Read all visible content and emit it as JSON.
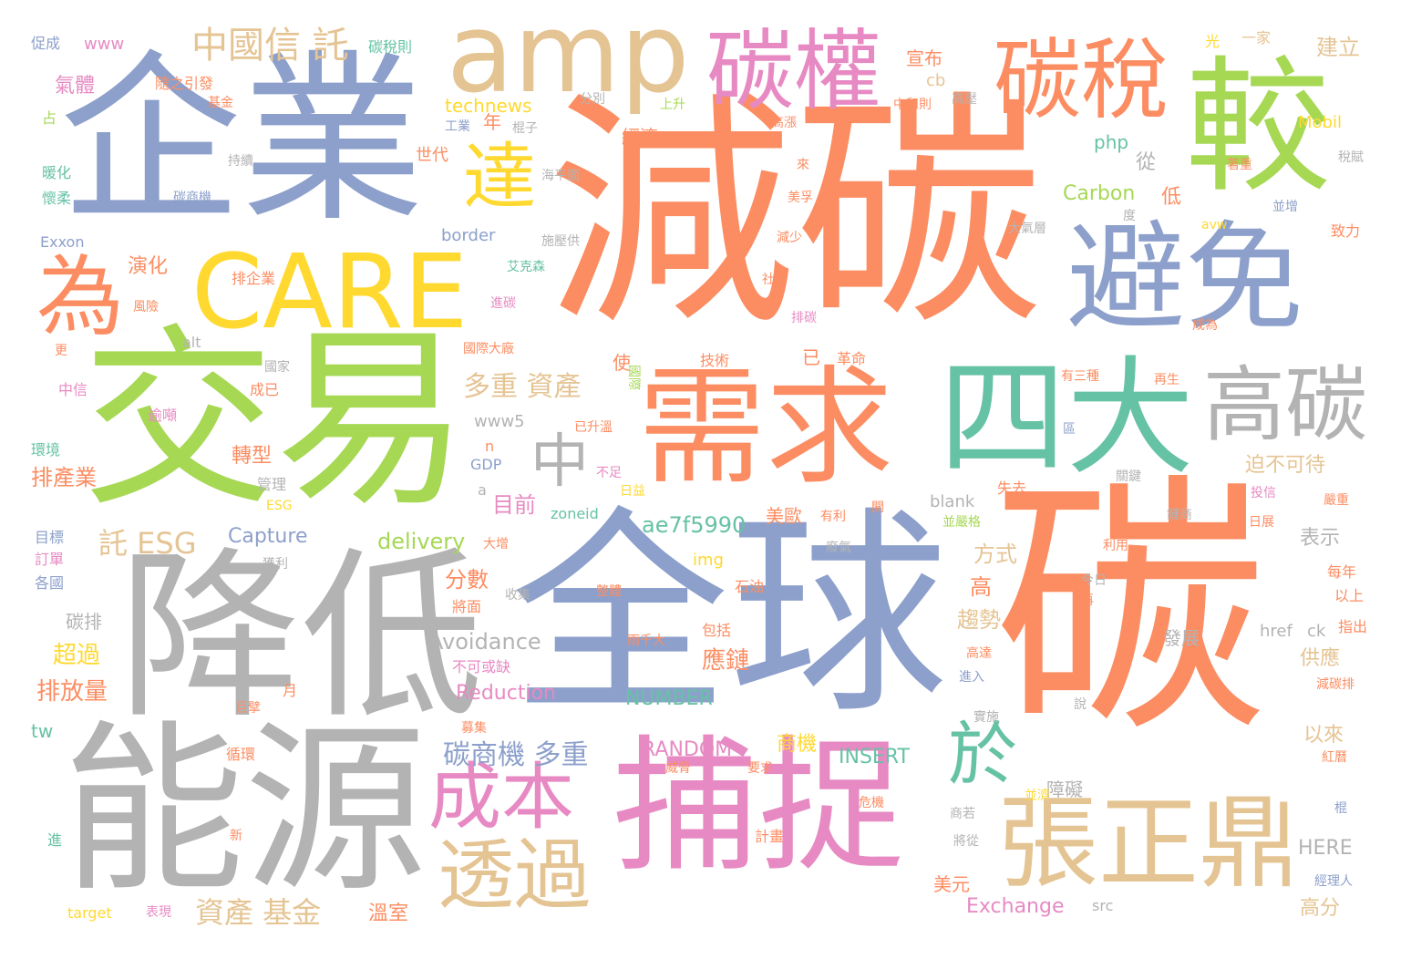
{
  "words": [
    "碳",
    "減碳",
    "全球",
    "交易",
    "降低",
    "能源",
    "企業",
    "捕捉",
    "較",
    "需求",
    "四大",
    "避免",
    "CARE",
    "amp",
    "張正鼎",
    "高碳",
    "碳權",
    "碳稅",
    "為",
    "成本",
    "透過",
    "達",
    "於",
    "中",
    "中國信 託",
    "多重 資產",
    "託 ESG",
    "資產 基金",
    "碳商機 多重",
    "轉型",
    "排產業",
    "排放量",
    "超過",
    "目前",
    "分數",
    "應鏈",
    "趨勢",
    "方式",
    "美歐",
    "ae7f5990",
    "delivery",
    "Capture",
    "Avoidance",
    "Reduction",
    "NUMBER",
    "RANDOM",
    "INSERT",
    "Exchange",
    "Carbon",
    "technews",
    "php",
    "宣布",
    "cb",
    "經濟",
    "世代",
    "年",
    "演化",
    "氣體",
    "www",
    "www5",
    "Exxon",
    "border",
    "GDP",
    "zoneid",
    "表示",
    "以來",
    "供應",
    "迫不可待",
    "高分",
    "HERE",
    "美元",
    "溫室",
    "障礙",
    "發展",
    "建立",
    "一家",
    "光",
    "Mobil",
    "致力",
    "每年",
    "以上",
    "指出",
    "說",
    "href",
    "ck",
    "src",
    "target",
    "表現",
    "tw",
    "碳排",
    "隨之引發",
    "碳稅則",
    "促成",
    "基金",
    "占",
    "暖化",
    "懷柔",
    "環境",
    "目標",
    "訂單",
    "各國",
    "循環",
    "巨擘",
    "月",
    "募集",
    "進",
    "新",
    "計畫",
    "危機",
    "商機",
    "要求",
    "威脅",
    "不可或缺",
    "將面",
    "雨千大",
    "包括",
    "石油",
    "整體",
    "收集",
    "獲利",
    "大增",
    "使",
    "已",
    "技術",
    "革命",
    "國際大廠",
    "逾噸",
    "成已",
    "中信",
    "國家",
    "alt",
    "更",
    "風險",
    "排企業",
    "艾克森",
    "進碳",
    "施壓供",
    "減少",
    "社會",
    "排碳",
    "來",
    "美孚",
    "高漲",
    "工業",
    "棍子",
    "分別",
    "海平面",
    "碳商機",
    "持續",
    "上升",
    "中和則",
    "高壓",
    "大氣層",
    "度",
    "稅賦",
    "並增",
    "avw",
    "著重",
    "成為",
    "有三種",
    "再生",
    "區",
    "關鍵",
    "鏈商",
    "投信",
    "嚴重",
    "日展",
    "利用",
    "今日",
    "再",
    "高達",
    "進入",
    "實施",
    "商若",
    "將從",
    "並濟",
    "紅曆",
    "經理人",
    "棍",
    "減碳排",
    "blank",
    "失去",
    "並嚴格",
    "有利",
    "開",
    "廢氣",
    "不足",
    "日益",
    "已升溫",
    "管理",
    "ESG",
    "a",
    "n",
    "從",
    "低",
    "高",
    "img",
    "國際",
    "a2"
  ],
  "palette": {
    "orange": "#fc8d62",
    "blue": "#8da0cb",
    "pink": "#e78ac3",
    "green": "#a6d854",
    "yellow": "#ffd92f",
    "tan": "#e5c494",
    "gray": "#b3b3b3",
    "teal": "#66c2a5"
  }
}
